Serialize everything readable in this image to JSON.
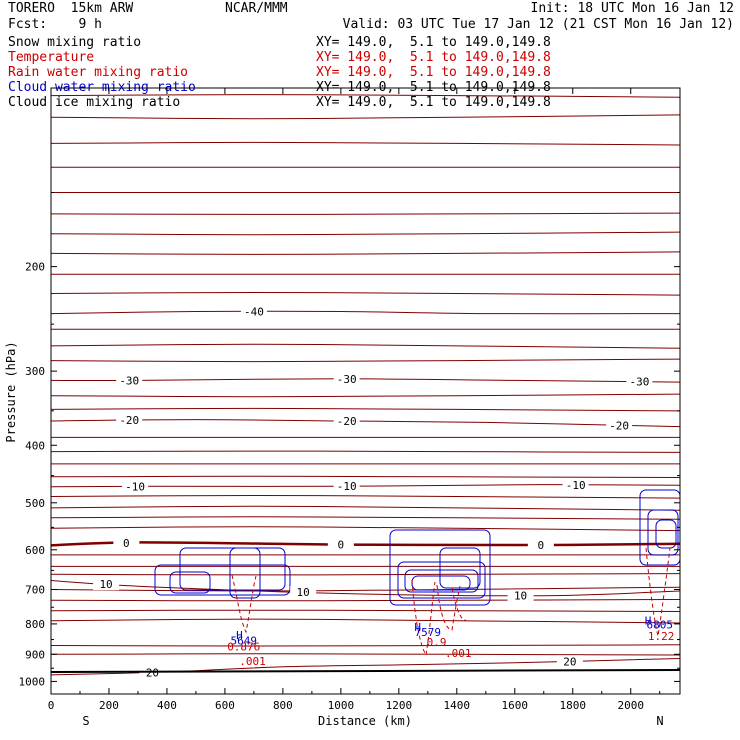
{
  "header": {
    "model": "TORERO  15km ARW",
    "org": "NCAR/MMM",
    "init": "Init: 18 UTC Mon 16 Jan 12",
    "fcst": "Fcst:    9 h",
    "valid": "Valid: 03 UTC Tue 17 Jan 12 (21 CST Mon 16 Jan 12)"
  },
  "fields": [
    {
      "name": "Snow mixing ratio",
      "xy": "XY= 149.0,  5.1 to 149.0,149.8",
      "color": "#000000"
    },
    {
      "name": "Temperature",
      "xy": "XY= 149.0,  5.1 to 149.0,149.8",
      "color": "#cc0000"
    },
    {
      "name": "Rain water mixing ratio",
      "xy": "XY= 149.0,  5.1 to 149.0,149.8",
      "color": "#cc0000"
    },
    {
      "name": "Cloud water mixing ratio",
      "xy": "XY= 149.0,  5.1 to 149.0,149.8",
      "color": "#0000cc"
    },
    {
      "name": "Cloud ice mixing ratio",
      "xy": "XY= 149.0,  5.1 to 149.0,149.8",
      "color": "#000000"
    }
  ],
  "chart_data": {
    "type": "contour",
    "xlabel": "Distance (km)",
    "ylabel": "Pressure (hPa)",
    "xlim": [
      0,
      2170
    ],
    "ylim": [
      100,
      1050
    ],
    "y_scale": "log",
    "x_ticks": [
      0,
      200,
      400,
      600,
      800,
      1000,
      1200,
      1400,
      1600,
      1800,
      2000
    ],
    "y_ticks": [
      200,
      300,
      400,
      500,
      600,
      700,
      800,
      900,
      1000
    ],
    "x_end_labels": {
      "left": "S",
      "right": "N"
    },
    "temperature_color": "#800000",
    "temperature_contours": [
      {
        "label": "-40",
        "points": [
          [
            0,
            240
          ],
          [
            500,
            238
          ],
          [
            1000,
            238
          ],
          [
            1500,
            240
          ],
          [
            2170,
            240
          ]
        ],
        "label_x": [
          700
        ]
      },
      {
        "label": "-30",
        "points": [
          [
            0,
            311
          ],
          [
            300,
            311
          ],
          [
            1000,
            309
          ],
          [
            1600,
            311
          ],
          [
            2170,
            313
          ]
        ],
        "label_x": [
          270,
          1020,
          2030
        ]
      },
      {
        "label": "-20",
        "points": [
          [
            0,
            364
          ],
          [
            500,
            362
          ],
          [
            1000,
            364
          ],
          [
            1500,
            366
          ],
          [
            2170,
            372
          ]
        ],
        "label_x": [
          270,
          1020,
          1960
        ]
      },
      {
        "label": "-10",
        "points": [
          [
            0,
            470
          ],
          [
            300,
            469
          ],
          [
            1000,
            469
          ],
          [
            1700,
            466
          ],
          [
            2170,
            467
          ]
        ],
        "label_x": [
          290,
          1020,
          1810
        ]
      },
      {
        "label": "0",
        "points": [
          [
            0,
            590
          ],
          [
            300,
            583
          ],
          [
            1000,
            588
          ],
          [
            1700,
            589
          ],
          [
            2170,
            586
          ]
        ],
        "label_x": [
          260,
          1000,
          1690
        ],
        "bold": true
      },
      {
        "label": "10",
        "points": [
          [
            0,
            676
          ],
          [
            300,
            691
          ],
          [
            1000,
            711
          ],
          [
            1700,
            717
          ],
          [
            2170,
            704
          ]
        ],
        "label_x": [
          190,
          870,
          1620
        ]
      },
      {
        "label": "20",
        "points": [
          [
            0,
            975
          ],
          [
            400,
            964
          ],
          [
            800,
            945
          ],
          [
            1200,
            938
          ],
          [
            1600,
            930
          ],
          [
            2170,
            915
          ]
        ],
        "label_x": [
          350,
          1790
        ]
      }
    ],
    "annotations": [
      {
        "text": "H",
        "x": 650,
        "p": 848,
        "color": "#0000cc"
      },
      {
        "text": "5649",
        "x": 665,
        "p": 866,
        "color": "#0000cc"
      },
      {
        "text": "0.876",
        "x": 665,
        "p": 887,
        "color": "#cc0000"
      },
      {
        "text": ".001",
        "x": 695,
        "p": 939,
        "color": "#cc0000"
      },
      {
        "text": "H",
        "x": 1265,
        "p": 823,
        "color": "#0000cc"
      },
      {
        "text": "7579",
        "x": 1300,
        "p": 838,
        "color": "#0000cc"
      },
      {
        "text": "0.9",
        "x": 1330,
        "p": 871,
        "color": "#cc0000"
      },
      {
        "text": ".001",
        "x": 1405,
        "p": 910,
        "color": "#cc0000"
      },
      {
        "text": "H",
        "x": 2060,
        "p": 802,
        "color": "#0000cc"
      },
      {
        "text": "6805",
        "x": 2100,
        "p": 815,
        "color": "#0000cc"
      },
      {
        "text": "1.22",
        "x": 2105,
        "p": 852,
        "color": "#cc0000"
      }
    ]
  }
}
